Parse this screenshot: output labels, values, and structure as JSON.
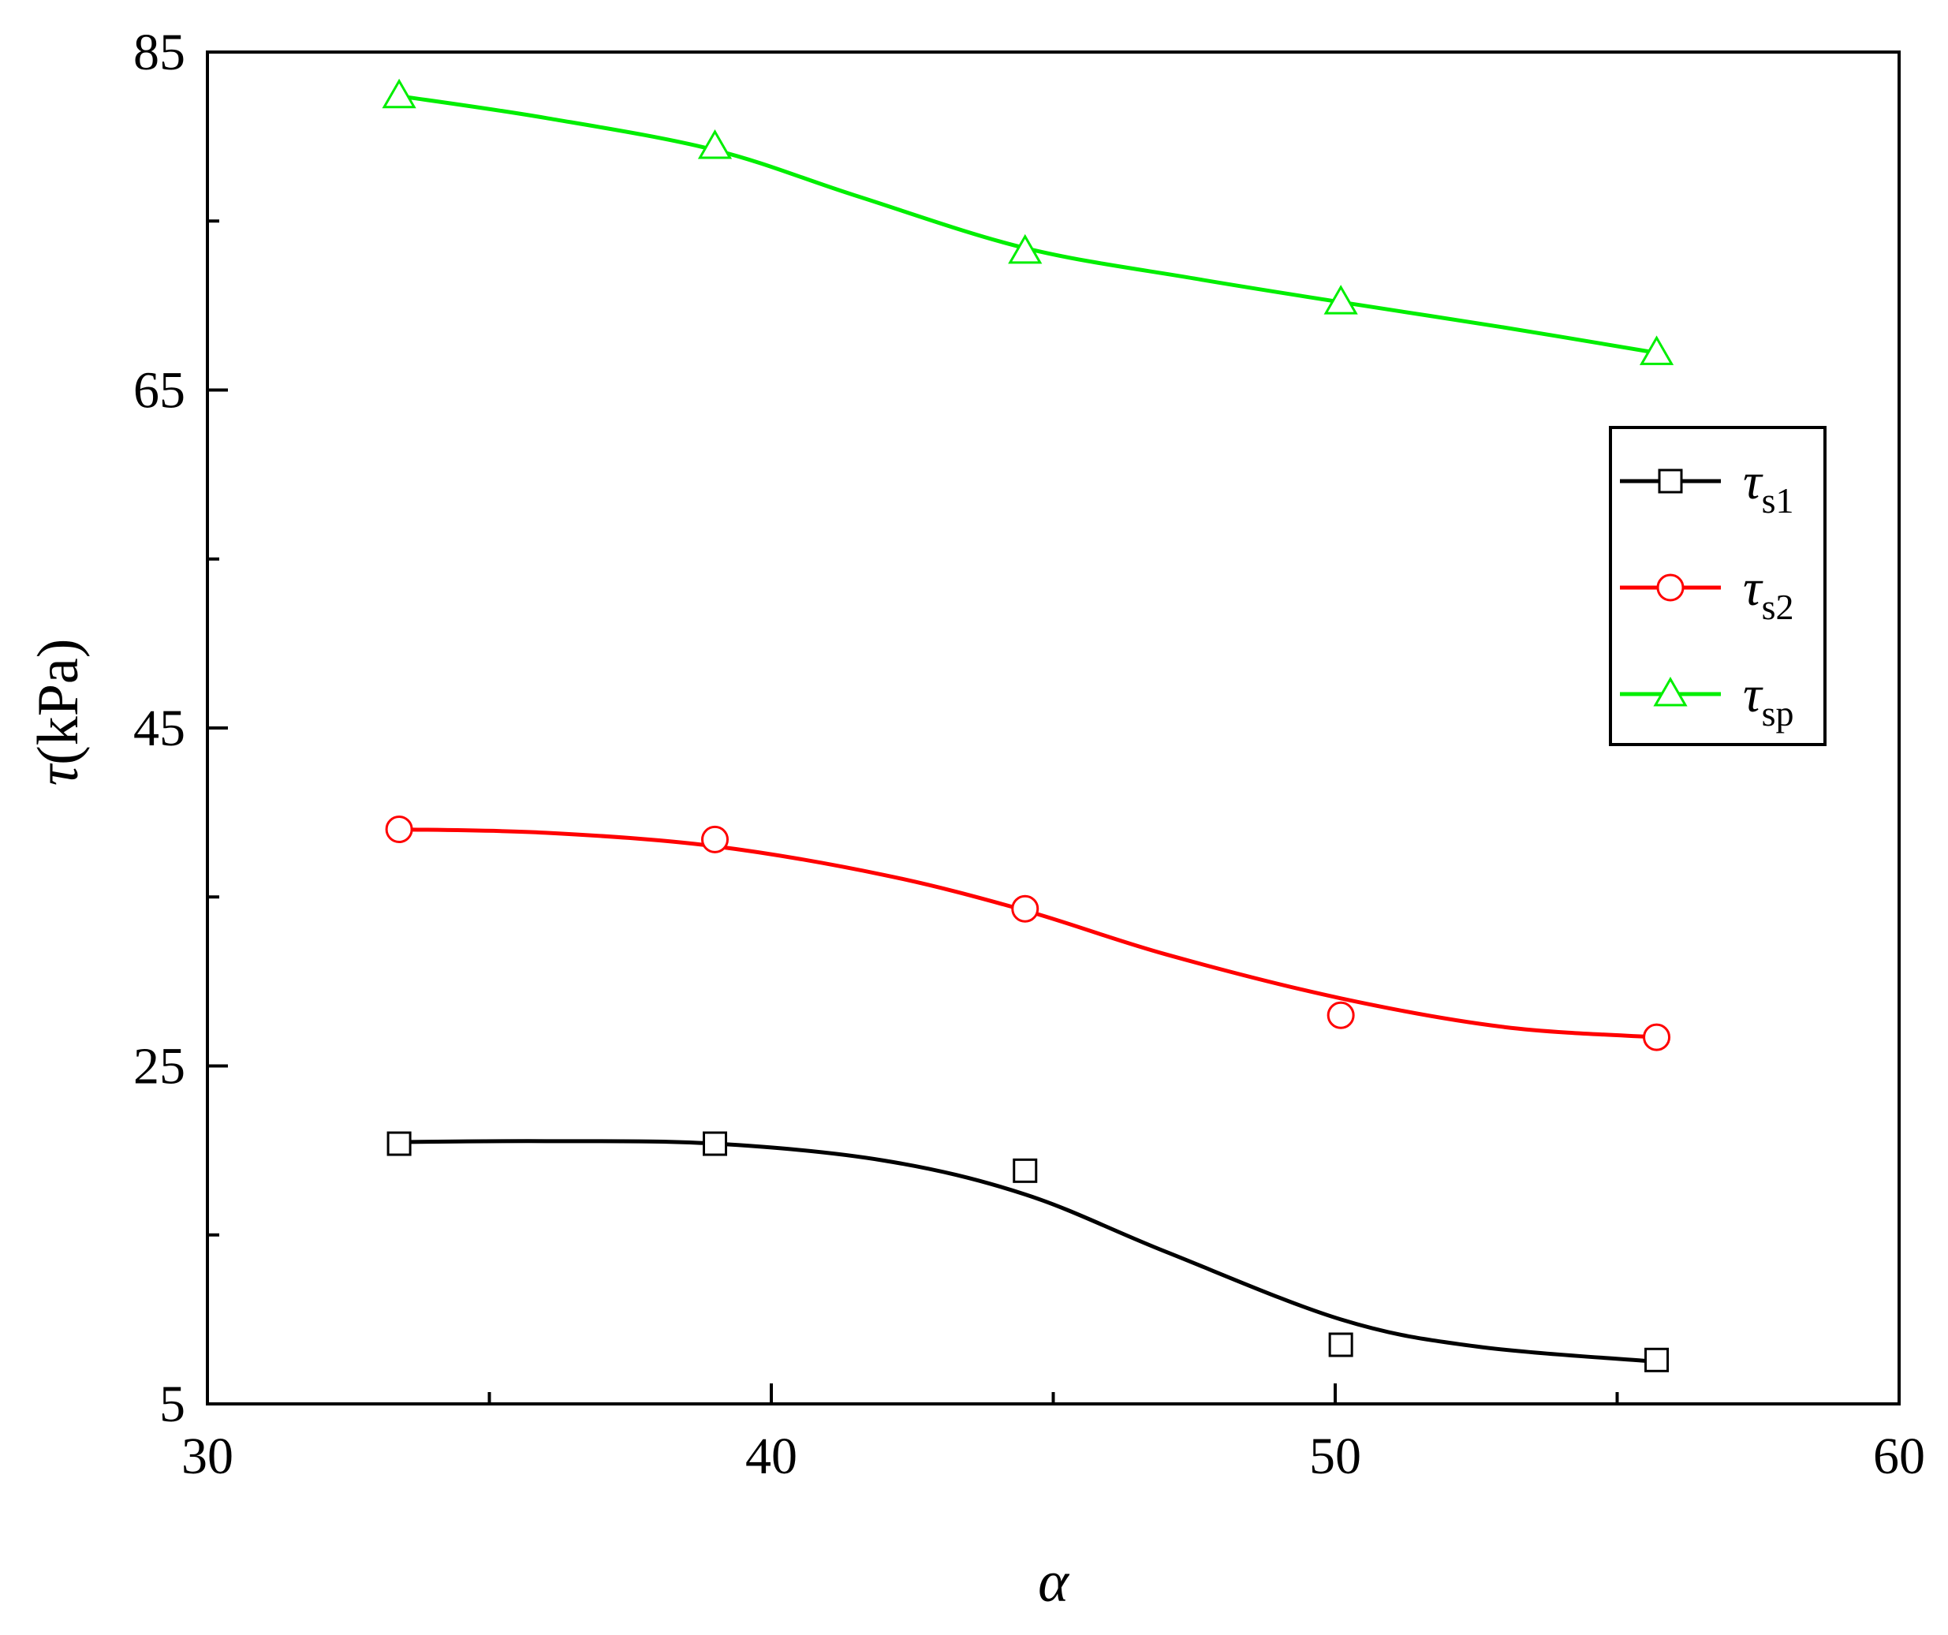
{
  "chart_data": {
    "type": "line",
    "xlabel": "α",
    "ylabel_symbol": "τ",
    "ylabel_unit": "(kPa)",
    "xlim": [
      30,
      60
    ],
    "ylim": [
      5,
      85
    ],
    "x_ticks": [
      30,
      40,
      50,
      60
    ],
    "y_ticks": [
      5,
      25,
      45,
      65,
      85
    ],
    "x_minor_ticks": [
      35,
      45,
      55
    ],
    "y_minor_ticks": [
      15,
      35,
      55,
      75
    ],
    "grid": false,
    "legend_position": "right",
    "series": [
      {
        "name": "τs1",
        "symbol": "τ",
        "subscript": "s1",
        "color": "#000000",
        "marker": "square",
        "points": [
          [
            33.4,
            20.4
          ],
          [
            39.0,
            20.4
          ],
          [
            44.5,
            18.8
          ],
          [
            50.1,
            8.5
          ],
          [
            55.7,
            7.6
          ]
        ],
        "fit": [
          [
            33.4,
            20.5
          ],
          [
            36.0,
            20.55
          ],
          [
            39.0,
            20.4
          ],
          [
            42.0,
            19.4
          ],
          [
            44.5,
            17.4
          ],
          [
            47.0,
            14.0
          ],
          [
            50.1,
            10.0
          ],
          [
            52.5,
            8.4
          ],
          [
            55.7,
            7.5
          ]
        ]
      },
      {
        "name": "τs2",
        "symbol": "τ",
        "subscript": "s2",
        "color": "#ff0000",
        "marker": "circle",
        "points": [
          [
            33.4,
            39.0
          ],
          [
            39.0,
            38.4
          ],
          [
            44.5,
            34.3
          ],
          [
            50.1,
            28.0
          ],
          [
            55.7,
            26.7
          ]
        ],
        "fit": [
          [
            33.4,
            39.0
          ],
          [
            36.0,
            38.8
          ],
          [
            39.0,
            38.0
          ],
          [
            42.0,
            36.3
          ],
          [
            44.5,
            34.2
          ],
          [
            47.0,
            31.6
          ],
          [
            50.1,
            29.0
          ],
          [
            53.0,
            27.3
          ],
          [
            55.7,
            26.7
          ]
        ]
      },
      {
        "name": "τsp",
        "symbol": "τ",
        "subscript": "sp",
        "color": "#00ee00",
        "marker": "triangle",
        "points": [
          [
            33.4,
            82.4
          ],
          [
            39.0,
            79.4
          ],
          [
            44.5,
            73.2
          ],
          [
            50.1,
            70.2
          ],
          [
            55.7,
            67.2
          ]
        ],
        "fit": [
          [
            33.4,
            82.4
          ],
          [
            36.0,
            81.1
          ],
          [
            39.0,
            79.2
          ],
          [
            41.5,
            76.5
          ],
          [
            44.5,
            73.4
          ],
          [
            47.5,
            71.6
          ],
          [
            50.1,
            70.2
          ],
          [
            53.0,
            68.7
          ],
          [
            55.7,
            67.2
          ]
        ]
      }
    ]
  }
}
